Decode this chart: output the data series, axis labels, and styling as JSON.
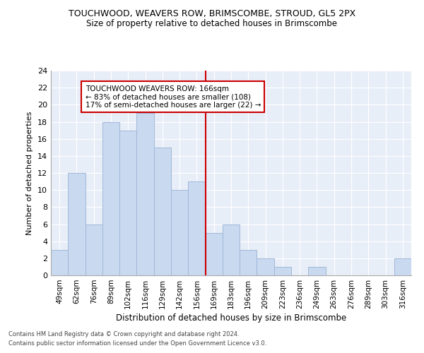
{
  "title1": "TOUCHWOOD, WEAVERS ROW, BRIMSCOMBE, STROUD, GL5 2PX",
  "title2": "Size of property relative to detached houses in Brimscombe",
  "xlabel": "Distribution of detached houses by size in Brimscombe",
  "ylabel": "Number of detached properties",
  "categories": [
    "49sqm",
    "62sqm",
    "76sqm",
    "89sqm",
    "102sqm",
    "116sqm",
    "129sqm",
    "142sqm",
    "156sqm",
    "169sqm",
    "183sqm",
    "196sqm",
    "209sqm",
    "223sqm",
    "236sqm",
    "249sqm",
    "263sqm",
    "276sqm",
    "289sqm",
    "303sqm",
    "316sqm"
  ],
  "values": [
    3,
    12,
    6,
    18,
    17,
    19,
    15,
    10,
    11,
    5,
    6,
    3,
    2,
    1,
    0,
    1,
    0,
    0,
    0,
    0,
    2
  ],
  "bar_color": "#c9d9f0",
  "bar_edgecolor": "#a0b8d8",
  "vline_x": 8.5,
  "vline_color": "#cc0000",
  "annotation_text": "TOUCHWOOD WEAVERS ROW: 166sqm\n← 83% of detached houses are smaller (108)\n17% of semi-detached houses are larger (22) →",
  "annotation_box_color": "#ffffff",
  "annotation_box_edgecolor": "#cc0000",
  "ylim": [
    0,
    24
  ],
  "yticks": [
    0,
    2,
    4,
    6,
    8,
    10,
    12,
    14,
    16,
    18,
    20,
    22,
    24
  ],
  "footer1": "Contains HM Land Registry data © Crown copyright and database right 2024.",
  "footer2": "Contains public sector information licensed under the Open Government Licence v3.0.",
  "background_color": "#e8eef8"
}
